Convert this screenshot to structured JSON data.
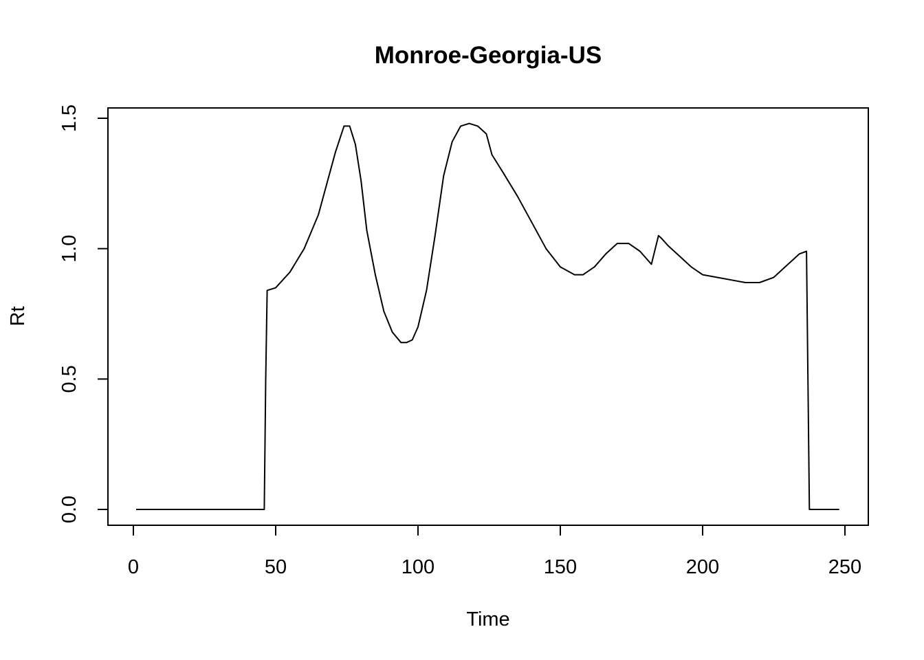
{
  "chart_data": {
    "type": "line",
    "title": "Monroe-Georgia-US",
    "xlabel": "Time",
    "ylabel": "Rt",
    "xlim": [
      0,
      250
    ],
    "ylim": [
      0,
      1.5
    ],
    "x_ticks": [
      "0",
      "50",
      "100",
      "150",
      "200",
      "250"
    ],
    "y_ticks": [
      "0.0",
      "0.5",
      "1.0",
      "1.5"
    ],
    "grid": false,
    "series": [
      {
        "color": "#000000",
        "x": [
          1,
          46,
          46.5,
          47,
          50,
          55,
          60,
          65,
          68,
          71,
          74,
          76,
          78,
          80,
          82,
          85,
          88,
          91,
          94,
          96,
          98,
          100,
          103,
          106,
          109,
          112,
          115,
          118,
          121,
          124,
          126,
          130,
          135,
          140,
          145,
          150,
          155,
          158,
          162,
          166,
          170,
          174,
          178,
          182,
          184.5,
          185.5,
          188,
          192,
          196,
          200,
          205,
          210,
          215,
          220,
          225,
          230,
          234,
          236.5,
          237.5,
          248
        ],
        "y": [
          0,
          0,
          0.5,
          0.84,
          0.85,
          0.91,
          1.0,
          1.13,
          1.25,
          1.37,
          1.47,
          1.47,
          1.4,
          1.26,
          1.07,
          0.9,
          0.76,
          0.68,
          0.64,
          0.64,
          0.65,
          0.7,
          0.84,
          1.05,
          1.28,
          1.41,
          1.47,
          1.48,
          1.47,
          1.44,
          1.36,
          1.29,
          1.2,
          1.1,
          1.0,
          0.93,
          0.9,
          0.9,
          0.93,
          0.98,
          1.02,
          1.02,
          0.99,
          0.94,
          1.05,
          1.04,
          1.01,
          0.97,
          0.93,
          0.9,
          0.89,
          0.88,
          0.87,
          0.87,
          0.89,
          0.94,
          0.98,
          0.99,
          0,
          0
        ]
      }
    ]
  }
}
